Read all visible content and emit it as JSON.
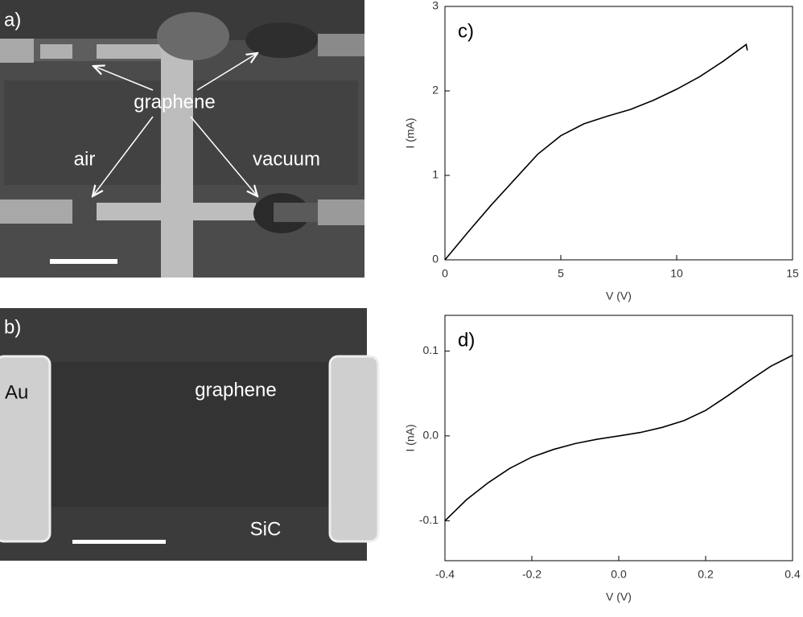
{
  "panels": {
    "a": {
      "label": "a)",
      "graphene": "graphene",
      "air": "air",
      "vacuum": "vacuum"
    },
    "b": {
      "label": "b)",
      "au": "Au",
      "graphene": "graphene",
      "sic": "SiC"
    }
  },
  "chart_data": [
    {
      "type": "line",
      "label": "c)",
      "xlabel": "V (V)",
      "ylabel": "I (mA)",
      "color": "#000000",
      "x": [
        0,
        1,
        2,
        3,
        4,
        5,
        6,
        7,
        8,
        9,
        10,
        11,
        12,
        13,
        13.05
      ],
      "values": [
        0,
        0.33,
        0.65,
        0.95,
        1.25,
        1.47,
        1.61,
        1.7,
        1.78,
        1.89,
        2.02,
        2.17,
        2.35,
        2.55,
        2.48
      ],
      "xlim": [
        0,
        15
      ],
      "ylim": [
        0,
        3
      ],
      "xticks": [
        0,
        5,
        10,
        15
      ],
      "yticks": [
        0,
        1,
        2,
        3
      ]
    },
    {
      "type": "line",
      "label": "d)",
      "xlabel": "V (V)",
      "ylabel": "I (nA)",
      "color": "#000000",
      "x": [
        -0.4,
        -0.35,
        -0.3,
        -0.25,
        -0.2,
        -0.15,
        -0.1,
        -0.05,
        0,
        0.05,
        0.1,
        0.15,
        0.2,
        0.25,
        0.3,
        0.35,
        0.4
      ],
      "values": [
        -0.1,
        -0.075,
        -0.055,
        -0.038,
        -0.025,
        -0.016,
        -0.009,
        -0.004,
        0,
        0.004,
        0.01,
        0.018,
        0.03,
        0.047,
        0.065,
        0.082,
        0.095
      ],
      "xlim": [
        -0.4,
        0.4
      ],
      "ylim": [
        -0.147,
        0.142
      ],
      "xticks": [
        -0.4,
        -0.2,
        {
          "value": 0,
          "label": "0.0"
        },
        0.2,
        0.4
      ],
      "yticks": [
        -0.1,
        {
          "value": 0,
          "label": "0.0"
        },
        0.1
      ]
    }
  ]
}
